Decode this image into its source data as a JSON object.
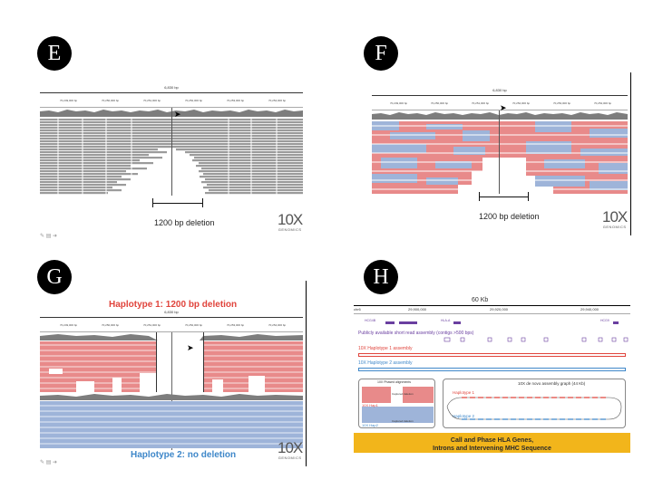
{
  "panels": {
    "E": {
      "badge": "E",
      "scale": "6,830 bp",
      "ticks": [
        "70,249,000 bp",
        "70,250,000 bp",
        "70,251,000 bp",
        "70,252,000 bp",
        "70,253,000 bp",
        "70,254,000 bp"
      ],
      "caption": "1200 bp deletion",
      "logo_big": "10X",
      "logo_small": "GENOMICS"
    },
    "F": {
      "badge": "F",
      "scale": "6,830 bp",
      "ticks": [
        "70,249,000 bp",
        "70,250,000 bp",
        "70,251,000 bp",
        "70,252,000 bp",
        "70,253,000 bp",
        "70,254,000 bp"
      ],
      "caption": "1200 bp deletion",
      "logo_big": "10X",
      "logo_small": "GENOMICS"
    },
    "G": {
      "badge": "G",
      "scale": "6,830 bp",
      "ticks": [
        "70,249,000 bp",
        "70,250,000 bp",
        "70,251,000 bp",
        "70,252,000 bp",
        "70,253,000 bp",
        "70,254,000 bp"
      ],
      "hap1": "Haplotype 1: 1200 bp deletion",
      "hap2": "Haplotype 2: no deletion",
      "logo_big": "10X",
      "logo_small": "GENOMICS"
    },
    "H": {
      "badge": "H",
      "scale": "60 Kb",
      "chrom": "chr6",
      "ticks": [
        "29,900,000",
        "29,920,000",
        "29,940,000"
      ],
      "genes_left": "HCG4B",
      "genes_mid": "HLA-A",
      "genes_right": "HCG9",
      "public_assembly": "Publicly available short read assembly (contigs >500 bps)",
      "hap1_assembly": "10X Haplotype 1 assembly",
      "hap2_assembly": "10X Haplotype 2 assembly",
      "inset_left_title": "10X Phased alignments",
      "inset_left_h1": "10X Hap1",
      "inset_left_h2": "10X Hap2",
      "inset_left_note1": "Captured deletion",
      "inset_left_note2": "Captured deletion",
      "inset_right_title": "10X de novo assembly graph (44 Kb)",
      "inset_right_h1": "Haplotype 1",
      "inset_right_h2": "Haplotype 2",
      "banner_line1": "Call and Phase HLA Genes,",
      "banner_line2": "Introns and Intervening MHC Sequence"
    }
  },
  "colors": {
    "gray_read": "#9b9b9b",
    "red_read": "#e88a8a",
    "blue_read": "#9eb4d9",
    "hap1_red": "#e0443c",
    "hap2_blue": "#3e87c9",
    "banner": "#f2b51b"
  }
}
